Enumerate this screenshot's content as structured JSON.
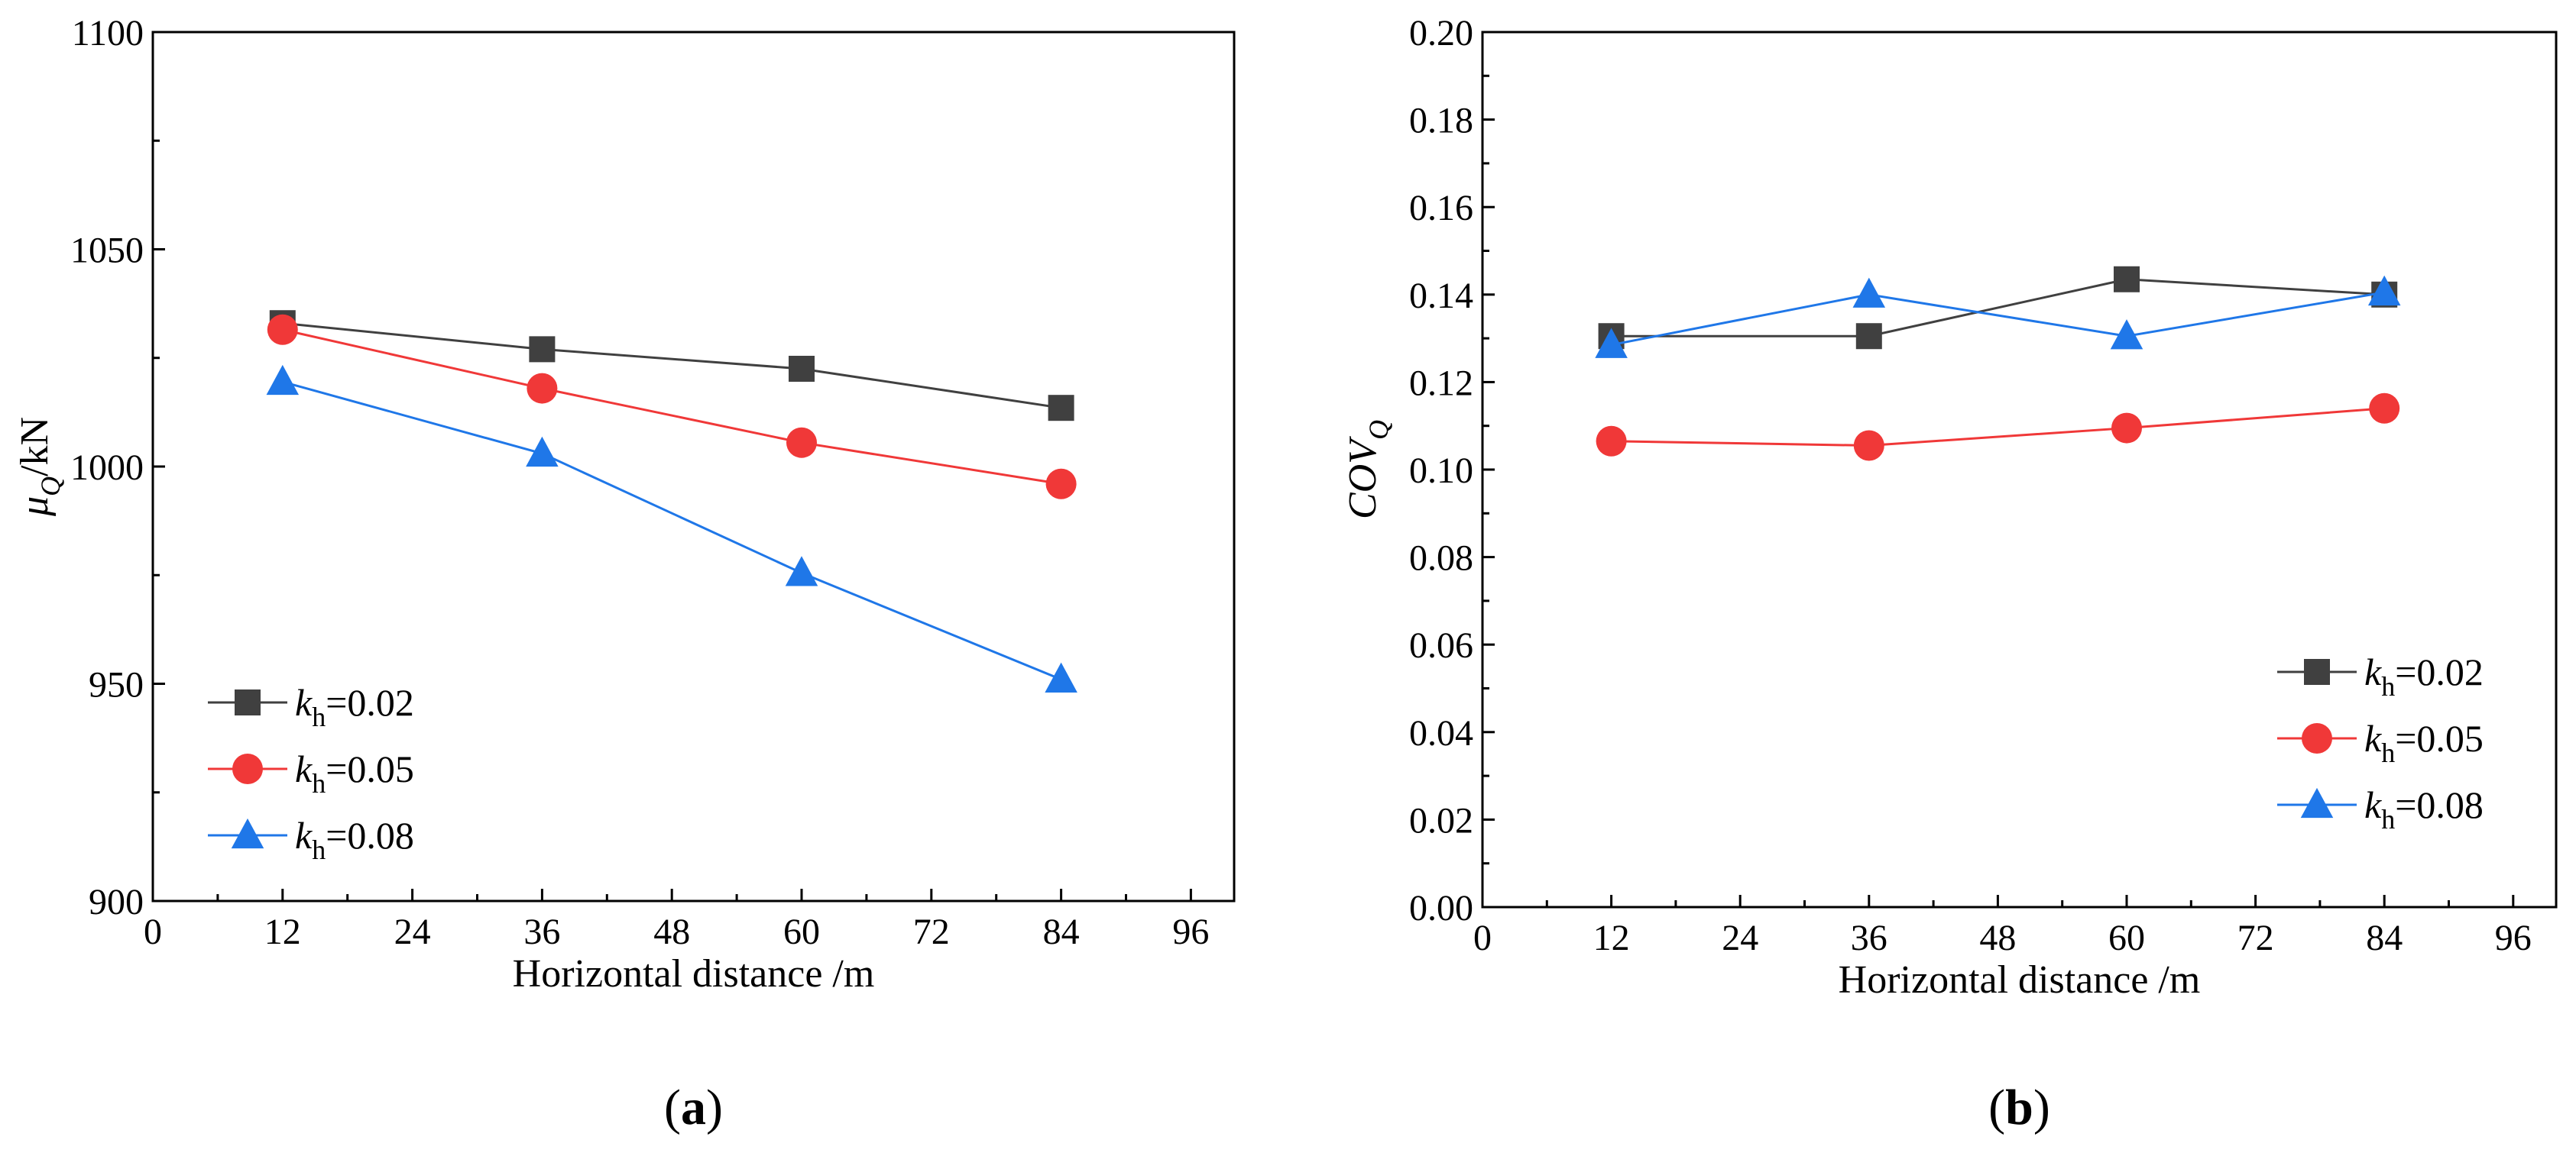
{
  "chart_data": [
    {
      "type": "line",
      "panel_label": "a",
      "xlabel": "Horizontal distance /m",
      "ylabel": {
        "main": "μ",
        "sub": "Q",
        "unit": "/kN"
      },
      "xlim": [
        0,
        100
      ],
      "ylim": [
        900,
        1100
      ],
      "xticks": [
        0,
        12,
        24,
        36,
        48,
        60,
        72,
        84,
        96
      ],
      "yticks": [
        900,
        950,
        1000,
        1050,
        1100
      ],
      "legend_position": "bottom-left",
      "x": [
        12,
        36,
        60,
        84
      ],
      "series": [
        {
          "name": "kh=0.02",
          "symbol": "k",
          "sub": "h",
          "value_text": "=0.02",
          "marker": "square",
          "color": "#404040",
          "values": [
            1033,
            1027,
            1022.5,
            1013.5
          ]
        },
        {
          "name": "kh=0.05",
          "symbol": "k",
          "sub": "h",
          "value_text": "=0.05",
          "marker": "circle",
          "color": "#f03838",
          "values": [
            1031.5,
            1018,
            1005.5,
            996
          ]
        },
        {
          "name": "kh=0.08",
          "symbol": "k",
          "sub": "h",
          "value_text": "=0.08",
          "marker": "triangle",
          "color": "#1f77e8",
          "values": [
            1019.5,
            1003,
            975.5,
            951
          ]
        }
      ]
    },
    {
      "type": "line",
      "panel_label": "b",
      "xlabel": "Horizontal distance /m",
      "ylabel": {
        "main": "COV",
        "sub": "Q",
        "unit": ""
      },
      "xlim": [
        0,
        100
      ],
      "ylim": [
        0,
        0.2
      ],
      "xticks": [
        0,
        12,
        24,
        36,
        48,
        60,
        72,
        84,
        96
      ],
      "yticks": [
        "0.00",
        "0.02",
        "0.04",
        "0.06",
        "0.08",
        "0.10",
        "0.12",
        "0.14",
        "0.16",
        "0.18",
        "0.20"
      ],
      "legend_position": "bottom-right",
      "x": [
        12,
        36,
        60,
        84
      ],
      "series": [
        {
          "name": "kh=0.02",
          "symbol": "k",
          "sub": "h",
          "value_text": "=0.02",
          "marker": "square",
          "color": "#404040",
          "values": [
            0.1305,
            0.1305,
            0.1435,
            0.14
          ]
        },
        {
          "name": "kh=0.05",
          "symbol": "k",
          "sub": "h",
          "value_text": "=0.05",
          "marker": "circle",
          "color": "#f03838",
          "values": [
            0.1065,
            0.1055,
            0.1095,
            0.114
          ]
        },
        {
          "name": "kh=0.08",
          "symbol": "k",
          "sub": "h",
          "value_text": "=0.08",
          "marker": "triangle",
          "color": "#1f77e8",
          "values": [
            0.1285,
            0.14,
            0.1305,
            0.1405
          ]
        }
      ]
    }
  ]
}
